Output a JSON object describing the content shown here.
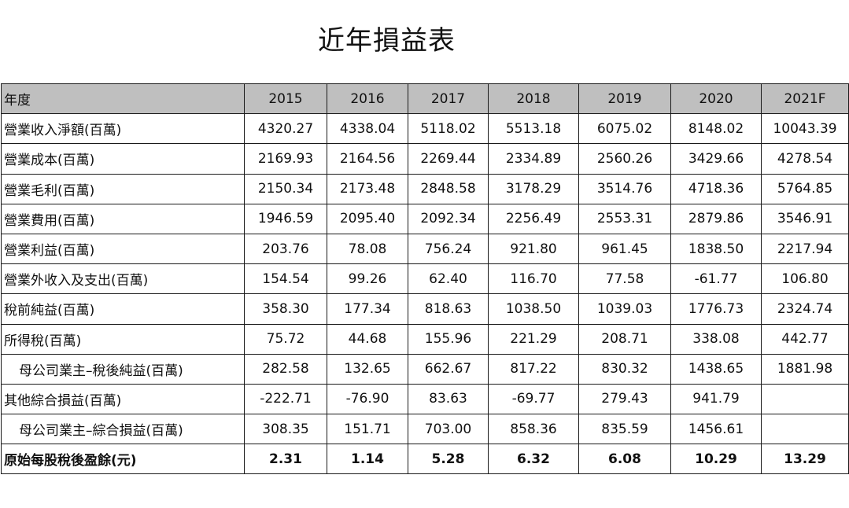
{
  "title": "近年損益表",
  "table": {
    "header": [
      "年度",
      "2015",
      "2016",
      "2017",
      "2018",
      "2019",
      "2020",
      "2021F"
    ],
    "rows": [
      {
        "label": "營業收入淨額(百萬)",
        "values": [
          "4320.27",
          "4338.04",
          "5118.02",
          "5513.18",
          "6075.02",
          "8148.02",
          "10043.39"
        ]
      },
      {
        "label": "營業成本(百萬)",
        "values": [
          "2169.93",
          "2164.56",
          "2269.44",
          "2334.89",
          "2560.26",
          "3429.66",
          "4278.54"
        ]
      },
      {
        "label": "營業毛利(百萬)",
        "values": [
          "2150.34",
          "2173.48",
          "2848.58",
          "3178.29",
          "3514.76",
          "4718.36",
          "5764.85"
        ]
      },
      {
        "label": "營業費用(百萬)",
        "values": [
          "1946.59",
          "2095.40",
          "2092.34",
          "2256.49",
          "2553.31",
          "2879.86",
          "3546.91"
        ]
      },
      {
        "label": "營業利益(百萬)",
        "values": [
          "203.76",
          "78.08",
          "756.24",
          "921.80",
          "961.45",
          "1838.50",
          "2217.94"
        ]
      },
      {
        "label": "營業外收入及支出(百萬)",
        "values": [
          "154.54",
          "99.26",
          "62.40",
          "116.70",
          "77.58",
          "-61.77",
          "106.80"
        ]
      },
      {
        "label": "稅前純益(百萬)",
        "values": [
          "358.30",
          "177.34",
          "818.63",
          "1038.50",
          "1039.03",
          "1776.73",
          "2324.74"
        ]
      },
      {
        "label": "所得稅(百萬)",
        "values": [
          "75.72",
          "44.68",
          "155.96",
          "221.29",
          "208.71",
          "338.08",
          "442.77"
        ]
      },
      {
        "label": "母公司業主–稅後純益(百萬)",
        "values": [
          "282.58",
          "132.65",
          "662.67",
          "817.22",
          "830.32",
          "1438.65",
          "1881.98"
        ]
      },
      {
        "label": "其他綜合損益(百萬)",
        "values": [
          "-222.71",
          "-76.90",
          "83.63",
          "-69.77",
          "279.43",
          "941.79",
          ""
        ]
      },
      {
        "label": "母公司業主–綜合損益(百萬)",
        "values": [
          "308.35",
          "151.71",
          "703.00",
          "858.36",
          "835.59",
          "1456.61",
          ""
        ]
      },
      {
        "label": "原始每股稅後盈餘(元)",
        "values": [
          "2.31",
          "1.14",
          "5.28",
          "6.32",
          "6.08",
          "10.29",
          "13.29"
        ]
      }
    ]
  },
  "colors": {
    "header_bg": "#bfbfbf",
    "border": "#1a1a1a",
    "text": "#111111"
  }
}
